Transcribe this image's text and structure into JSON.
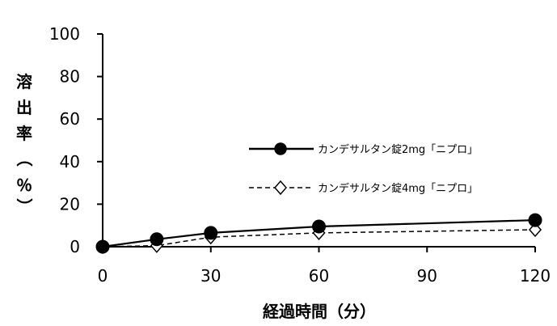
{
  "chart_data": {
    "type": "line",
    "xlabel": "経過時間（分）",
    "ylabel": "溶出率（％）",
    "xlim": [
      0,
      120
    ],
    "ylim": [
      0,
      100
    ],
    "x_ticks": [
      "0",
      "30",
      "60",
      "90",
      "120"
    ],
    "y_ticks": [
      "0",
      "20",
      "40",
      "60",
      "80",
      "100"
    ],
    "grid": false,
    "legend_position": "right",
    "series": [
      {
        "name": "カンデサルタン錠2mg「ニプロ」",
        "marker": "filled-circle",
        "line": "solid",
        "x": [
          0,
          15,
          30,
          60,
          120
        ],
        "y": [
          0,
          3.5,
          6.5,
          9.5,
          12.5
        ]
      },
      {
        "name": "カンデサルタン錠4mg「ニプロ」",
        "marker": "open-diamond",
        "line": "dashed",
        "x": [
          0,
          15,
          30,
          60,
          120
        ],
        "y": [
          0,
          0.5,
          4.5,
          6.5,
          8
        ]
      }
    ]
  }
}
